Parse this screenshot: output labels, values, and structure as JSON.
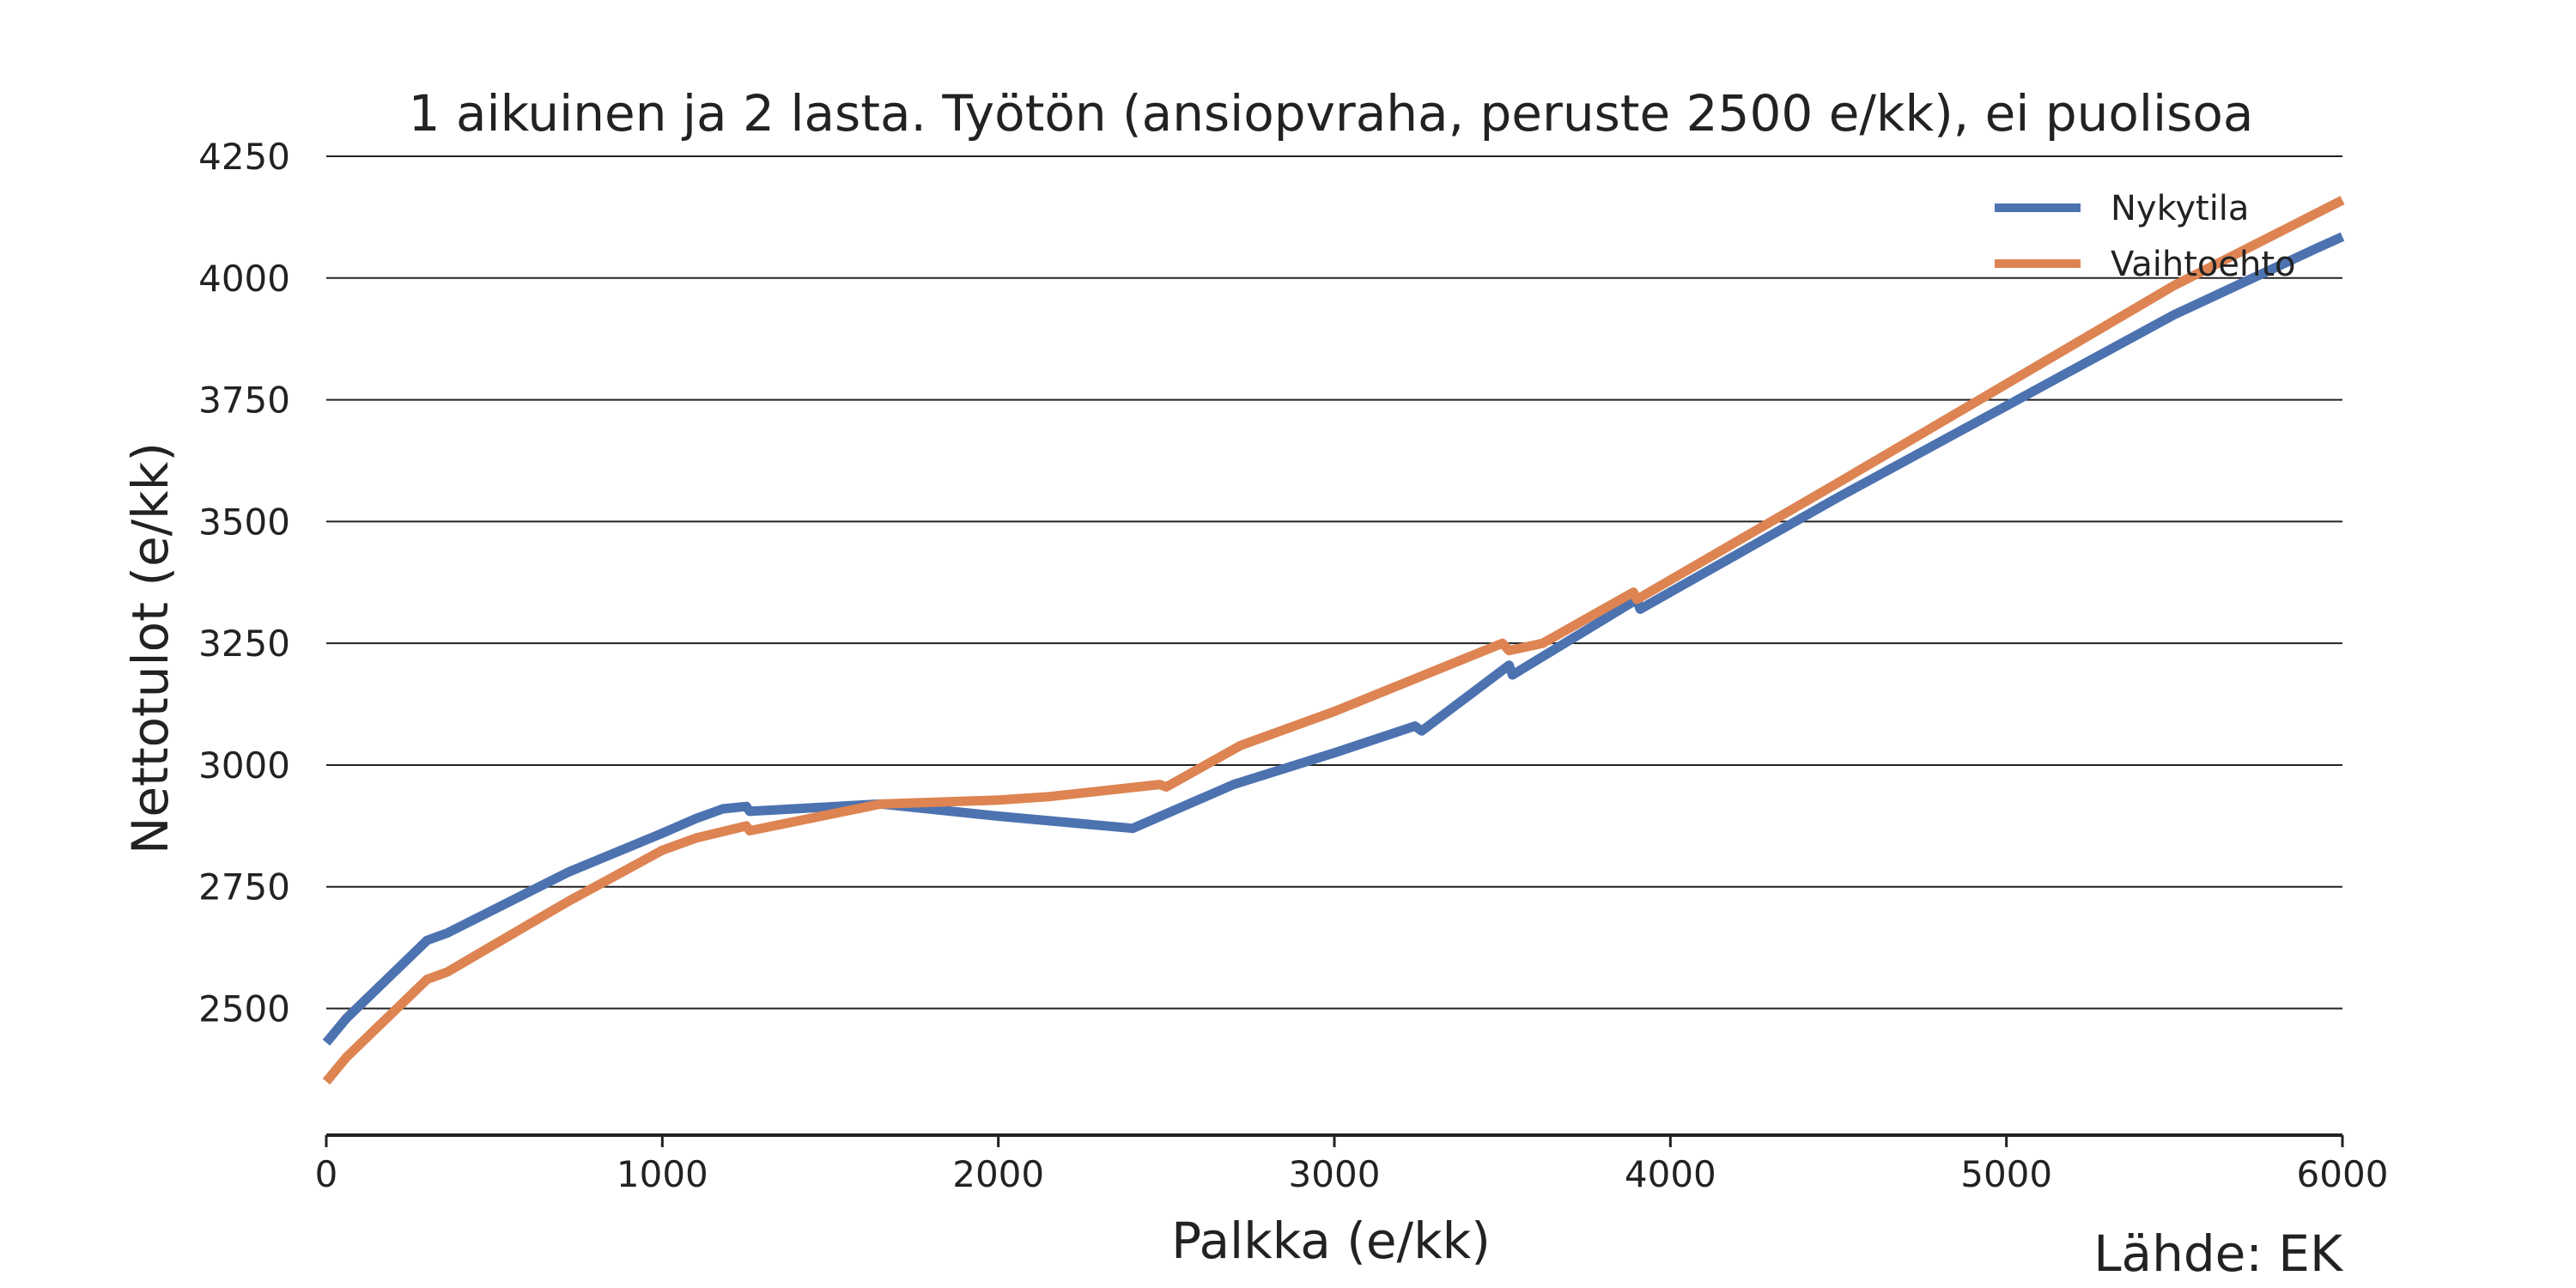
{
  "chart_data": {
    "type": "line",
    "title": "1 aikuinen ja 2 lasta. Työtön (ansiopvraha, peruste 2500 e/kk), ei puolisoa",
    "xlabel": "Palkka (e/kk)",
    "ylabel": "Nettotulot (e/kk)",
    "source": "Lähde: EK",
    "xlim": [
      0,
      6000
    ],
    "ylim": [
      2240,
      4250
    ],
    "xticks": [
      0,
      1000,
      2000,
      3000,
      4000,
      5000,
      6000
    ],
    "yticks": [
      2500,
      2750,
      3000,
      3250,
      3500,
      3750,
      4000,
      4250
    ],
    "grid": "horizontal",
    "legend_position": "top-right",
    "series": [
      {
        "name": "Nykytila",
        "color": "#4c72b0",
        "points": [
          [
            0,
            2430
          ],
          [
            60,
            2480
          ],
          [
            300,
            2640
          ],
          [
            360,
            2655
          ],
          [
            720,
            2780
          ],
          [
            1000,
            2860
          ],
          [
            1100,
            2890
          ],
          [
            1180,
            2910
          ],
          [
            1250,
            2915
          ],
          [
            1260,
            2905
          ],
          [
            1650,
            2920
          ],
          [
            2000,
            2895
          ],
          [
            2400,
            2870
          ],
          [
            2700,
            2960
          ],
          [
            3000,
            3025
          ],
          [
            3240,
            3080
          ],
          [
            3260,
            3070
          ],
          [
            3520,
            3205
          ],
          [
            3530,
            3185
          ],
          [
            3900,
            3340
          ],
          [
            3910,
            3320
          ],
          [
            4500,
            3550
          ],
          [
            5500,
            3925
          ],
          [
            5920,
            4060
          ],
          [
            6000,
            4085
          ]
        ]
      },
      {
        "name": "Vaihtoehto",
        "color": "#dd8452",
        "points": [
          [
            0,
            2350
          ],
          [
            60,
            2400
          ],
          [
            300,
            2560
          ],
          [
            360,
            2575
          ],
          [
            720,
            2720
          ],
          [
            1000,
            2825
          ],
          [
            1100,
            2850
          ],
          [
            1250,
            2875
          ],
          [
            1260,
            2865
          ],
          [
            1650,
            2920
          ],
          [
            2000,
            2928
          ],
          [
            2150,
            2935
          ],
          [
            2480,
            2960
          ],
          [
            2500,
            2955
          ],
          [
            2720,
            3040
          ],
          [
            3000,
            3110
          ],
          [
            3500,
            3250
          ],
          [
            3520,
            3235
          ],
          [
            3620,
            3250
          ],
          [
            3890,
            3355
          ],
          [
            3900,
            3340
          ],
          [
            4500,
            3580
          ],
          [
            5500,
            3985
          ],
          [
            6000,
            4160
          ]
        ]
      }
    ]
  }
}
